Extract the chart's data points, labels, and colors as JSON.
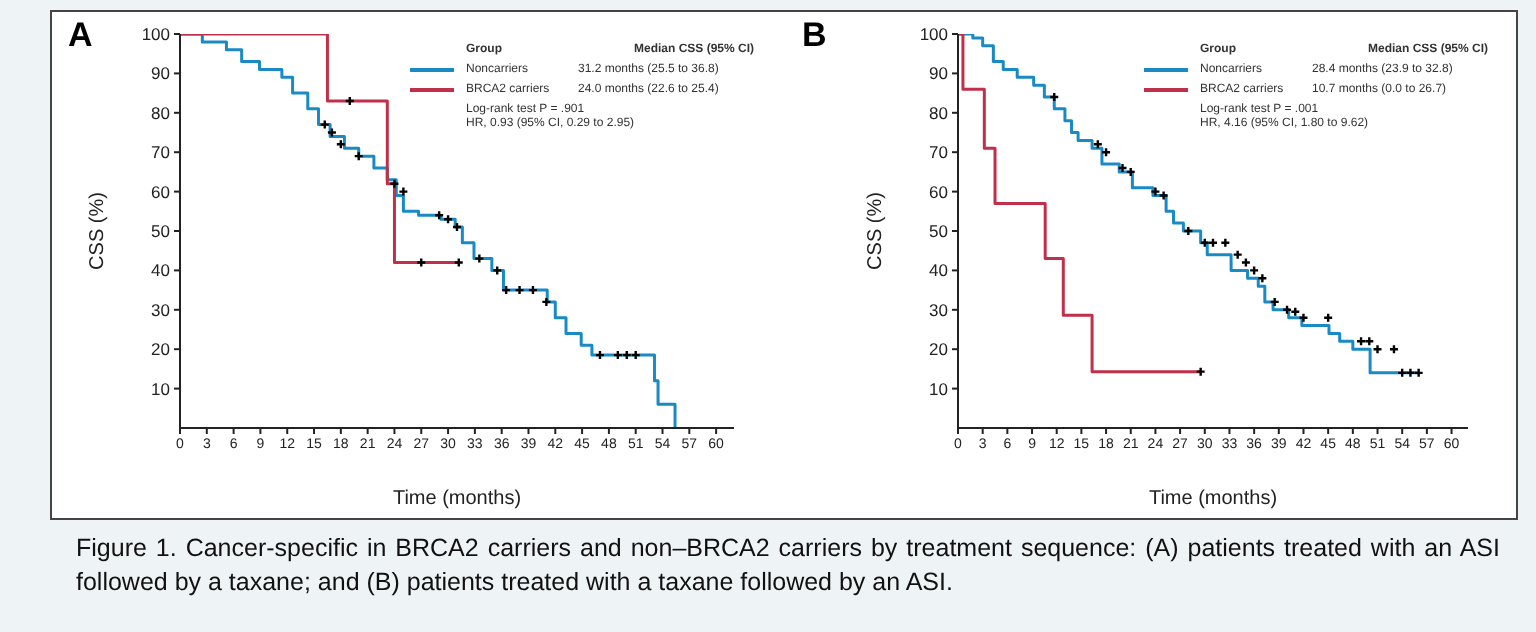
{
  "chart_data": [
    {
      "type": "step",
      "title": "A",
      "xlabel": "Time (months)",
      "ylabel": "CSS (%)",
      "legend_title": "Group",
      "legend": "top right",
      "xlim": [
        0,
        62
      ],
      "xticks": [
        0,
        3,
        6,
        9,
        12,
        15,
        18,
        21,
        24,
        27,
        30,
        33,
        36,
        39,
        42,
        45,
        48,
        51,
        54,
        57,
        60
      ],
      "ylim": [
        0,
        100
      ],
      "yticks": [
        10,
        20,
        30,
        40,
        50,
        60,
        70,
        80,
        90,
        100
      ],
      "annotations": [
        "Median CSS (95% CI)",
        "31.2 months (25.5 to 36.8)",
        "24.0 months (22.6 to 25.4)",
        "Log-rank test P = .901",
        "HR, 0.93 (95% CI, 0.29 to 2.95)"
      ],
      "series": [
        {
          "name": "Noncarriers",
          "color": "#1a8ac4",
          "x": [
            0,
            2.5,
            5.2,
            6.9,
            8.9,
            11.4,
            12.6,
            14.3,
            15.5,
            16.8,
            18.4,
            20,
            21.7,
            23.2,
            24.2,
            25,
            26.7,
            29.2,
            30.8,
            31.6,
            32.9,
            34.9,
            36.2,
            41.1,
            42,
            43.2,
            44.9,
            46.1,
            53.1,
            53.5,
            53.8,
            55.4
          ],
          "values": [
            100,
            98,
            96,
            93,
            91,
            89,
            85,
            81,
            77,
            74,
            71,
            69,
            66,
            63,
            59,
            55,
            54,
            53,
            51,
            47,
            43,
            40,
            35,
            32,
            28,
            24,
            21,
            18.5,
            12,
            6,
            6,
            0
          ]
        },
        {
          "name": "BRCA2 carriers",
          "color": "#c0304a",
          "x": [
            0,
            16.5,
            23.2,
            24,
            31.2
          ],
          "values": [
            100,
            83,
            62,
            42,
            42
          ]
        },
        {
          "type": "scatter",
          "marker": "cross",
          "color": "#000000",
          "x": [
            16.2,
            17,
            18,
            20,
            24,
            25,
            29,
            30,
            31,
            33.5,
            35.5,
            36.5,
            38,
            39.5,
            41,
            47,
            49,
            50,
            51,
            19,
            27,
            31.2
          ],
          "values": [
            77,
            75,
            72,
            69,
            62,
            60,
            54,
            53,
            51,
            43,
            40,
            35,
            35,
            35,
            32,
            18.5,
            18.5,
            18.5,
            18.5,
            83,
            42,
            42
          ]
        }
      ]
    },
    {
      "type": "step",
      "title": "B",
      "xlabel": "Time (months)",
      "ylabel": "CSS (%)",
      "legend_title": "Group",
      "legend": "top right",
      "xlim": [
        0,
        62
      ],
      "xticks": [
        0,
        3,
        6,
        9,
        12,
        15,
        18,
        21,
        24,
        27,
        30,
        33,
        36,
        39,
        42,
        45,
        48,
        51,
        54,
        57,
        60
      ],
      "ylim": [
        0,
        100
      ],
      "yticks": [
        10,
        20,
        30,
        40,
        50,
        60,
        70,
        80,
        90,
        100
      ],
      "annotations": [
        "Median CSS (95% CI)",
        "28.4 months (23.9 to 32.8)",
        "10.7 months (0.0 to 26.7)",
        "Log-rank test P = .001",
        "HR, 4.16 (95% CI, 1.80 to 9.62)",
        "Figure 1. Cancer-specific in BRCA2 carriers and non–BRCA2 carriers by treatment sequence: (A) patients treated with an ASI followed by a taxane; and (B) patients treated with a taxane followed by an ASI."
      ],
      "series": [
        {
          "name": "Noncarriers",
          "color": "#1a8ac4",
          "x": [
            0,
            1.8,
            3,
            4.3,
            5.5,
            7.2,
            9.2,
            10.5,
            11.7,
            13,
            13.8,
            14.6,
            16.3,
            17.5,
            19.6,
            21.2,
            23.7,
            25.3,
            26.2,
            27.4,
            29.5,
            30.3,
            33.2,
            35.2,
            36.5,
            37.3,
            38.3,
            40.2,
            41.8,
            45.1,
            46.4,
            48,
            50.1,
            53.2,
            55.9
          ],
          "values": [
            100,
            99,
            97,
            93,
            91,
            89,
            87,
            84,
            81,
            78,
            75,
            73,
            71,
            67,
            65,
            61,
            59,
            55,
            52,
            50,
            47,
            44,
            40,
            38,
            36,
            32,
            30,
            28,
            26,
            24,
            22,
            20,
            14,
            14,
            14
          ]
        },
        {
          "name": "BRCA2 carriers",
          "color": "#c0304a",
          "x": [
            0,
            0.6,
            3.2,
            4.5,
            10.6,
            12.8,
            16.3,
            29.5
          ],
          "values": [
            100,
            86,
            71,
            57,
            43,
            28.6,
            14.3,
            14.3
          ]
        },
        {
          "type": "scatter",
          "marker": "cross",
          "color": "#000000",
          "x": [
            11.7,
            17,
            18,
            20,
            21,
            24,
            25,
            28,
            30,
            31,
            32.5,
            34,
            35,
            36,
            37,
            38.5,
            40,
            41,
            42,
            45,
            49,
            50,
            51,
            53,
            54,
            55,
            56,
            29.5
          ],
          "values": [
            84,
            72,
            70,
            66,
            65,
            60,
            59,
            50,
            47,
            47,
            47,
            44,
            42,
            40,
            38,
            32,
            30,
            29.5,
            28,
            28,
            22,
            22,
            20,
            20,
            14,
            14,
            14,
            14.3
          ]
        }
      ]
    }
  ]
}
